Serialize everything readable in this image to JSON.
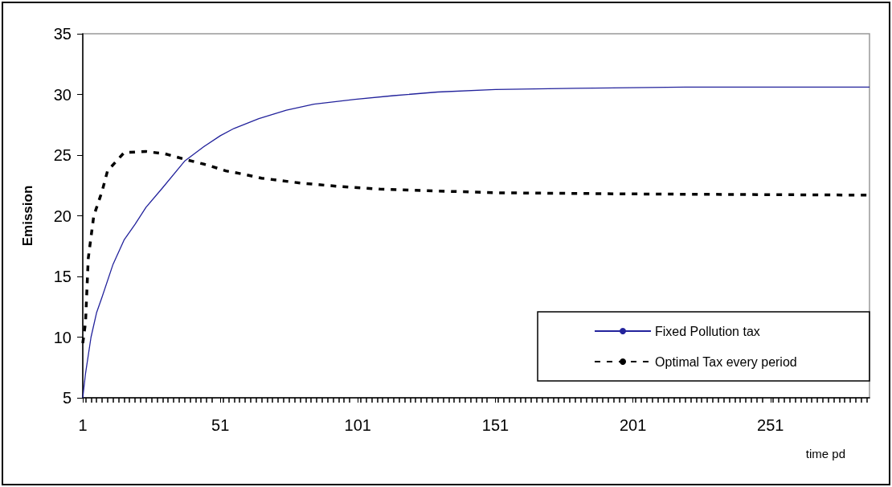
{
  "chart_data": {
    "type": "line",
    "xlabel": "time pd",
    "ylabel": "Emission",
    "xlim": [
      1,
      287
    ],
    "xticks": [
      1,
      51,
      101,
      151,
      201,
      251
    ],
    "ylim": [
      5,
      35
    ],
    "yticks": [
      5,
      10,
      15,
      20,
      25,
      30,
      35
    ],
    "grid": false,
    "legend": "bottom right",
    "marker": "none",
    "series": [
      {
        "name": "Fixed Pollution tax",
        "color": "#23239c",
        "line_style": "solid",
        "x": [
          1,
          2,
          4,
          6,
          8,
          12,
          16,
          20,
          24,
          30,
          38,
          45,
          51,
          56,
          65,
          75,
          85,
          100,
          114,
          130,
          151,
          180,
          220,
          287
        ],
        "values": [
          5,
          7,
          10,
          12,
          13.3,
          16,
          18,
          19.3,
          20.7,
          22.3,
          24.5,
          25.7,
          26.6,
          27.2,
          28,
          28.7,
          29.2,
          29.6,
          29.9,
          30.2,
          30.4,
          30.5,
          30.6,
          30.6
        ]
      },
      {
        "name": "Optimal Tax every period",
        "color": "#000000",
        "line_style": "dashed",
        "x": [
          1,
          2,
          3,
          5,
          8,
          10,
          16,
          24,
          31,
          39,
          46,
          53,
          60,
          66,
          80,
          95,
          109,
          150,
          200,
          287
        ],
        "values": [
          9.5,
          11.2,
          16.5,
          20,
          22,
          23.7,
          25.2,
          25.3,
          25.1,
          24.6,
          24.2,
          23.7,
          23.4,
          23.1,
          22.7,
          22.4,
          22.2,
          21.9,
          21.8,
          21.7
        ]
      }
    ]
  }
}
